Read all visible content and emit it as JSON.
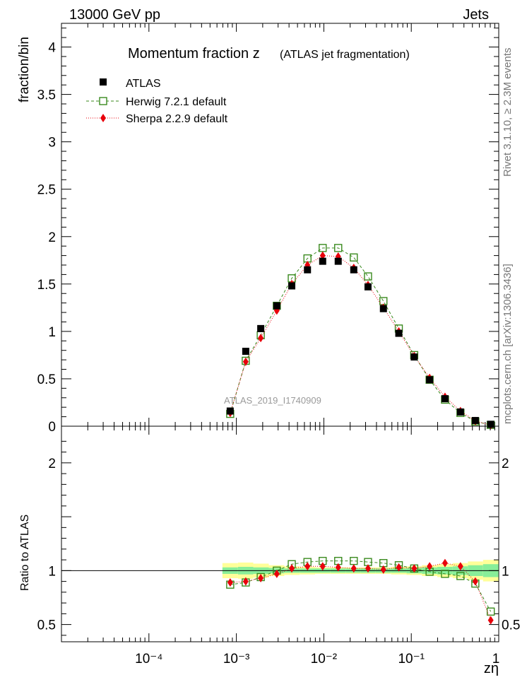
{
  "header": {
    "left": "13000 GeV pp",
    "right": "Jets"
  },
  "side": {
    "rivet": "Rivet 3.1.10, ≥ 2.3M events",
    "mcplots": "mcplots.cern.ch [arXiv:1306.3436]"
  },
  "chart_data": [
    {
      "type": "scatter",
      "title_main": "Momentum fraction z",
      "title_sub": "(ATLAS jet fragmentation)",
      "ylabel": "fraction/bin",
      "xscale": "log",
      "xlim": [
        1e-05,
        1
      ],
      "ylim": [
        0,
        4.25
      ],
      "yticks": [
        0,
        0.5,
        1,
        1.5,
        2,
        2.5,
        3,
        3.5,
        4
      ],
      "ytick_labels": [
        "0",
        "0.5",
        "1",
        "1.5",
        "2",
        "2.5",
        "3",
        "3.5",
        "4"
      ],
      "watermark": "ATLAS_2019_I1740909",
      "legend": [
        "ATLAS",
        "Herwig 7.2.1 default",
        "Sherpa 2.2.9 default"
      ],
      "x": [
        0.00085,
        0.00128,
        0.0019,
        0.0029,
        0.0043,
        0.0065,
        0.0097,
        0.0146,
        0.022,
        0.032,
        0.048,
        0.072,
        0.108,
        0.162,
        0.243,
        0.365,
        0.54,
        0.81
      ],
      "series": [
        {
          "name": "ATLAS",
          "color": "#000000",
          "marker": "square-filled",
          "values": [
            0.16,
            0.79,
            1.03,
            1.27,
            1.48,
            1.65,
            1.74,
            1.74,
            1.65,
            1.47,
            1.24,
            0.98,
            0.73,
            0.49,
            0.29,
            0.15,
            0.06,
            0.02
          ]
        },
        {
          "name": "Herwig 7.2.1 default",
          "color": "#3a8a1e",
          "marker": "square-open",
          "values": [
            0.13,
            0.69,
            0.96,
            1.27,
            1.56,
            1.77,
            1.88,
            1.88,
            1.78,
            1.58,
            1.32,
            1.03,
            0.75,
            0.49,
            0.28,
            0.14,
            0.05,
            0.014
          ]
        },
        {
          "name": "Sherpa 2.2.9 default",
          "color": "#e8000b",
          "marker": "diamond",
          "values": [
            0.14,
            0.68,
            0.93,
            1.22,
            1.5,
            1.7,
            1.8,
            1.79,
            1.67,
            1.49,
            1.25,
            1.0,
            0.74,
            0.51,
            0.31,
            0.16,
            0.055,
            0.012
          ]
        }
      ]
    },
    {
      "type": "scatter",
      "ylabel": "Ratio to ATLAS",
      "xlabel": "zη",
      "xscale": "log",
      "xlim": [
        1e-05,
        1
      ],
      "ylim": [
        0.34,
        2.34
      ],
      "yticks": [
        0.5,
        1,
        2
      ],
      "ytick_labels": [
        "0.5",
        "1",
        "2"
      ],
      "xtick_labels": [
        "10⁻⁴",
        "10⁻³",
        "10⁻²",
        "10⁻¹",
        "1"
      ],
      "xticks": [
        0.0001,
        0.001,
        0.01,
        0.1,
        1
      ],
      "band_inner": [
        0.03,
        0.035,
        0.03,
        0.025,
        0.02,
        0.02,
        0.02,
        0.02,
        0.02,
        0.02,
        0.02,
        0.02,
        0.025,
        0.03,
        0.035,
        0.04,
        0.05,
        0.06
      ],
      "band_outer": [
        0.07,
        0.075,
        0.065,
        0.05,
        0.04,
        0.035,
        0.03,
        0.03,
        0.03,
        0.03,
        0.03,
        0.035,
        0.04,
        0.05,
        0.06,
        0.07,
        0.085,
        0.1
      ],
      "series": [
        {
          "name": "Herwig 7.2.1 default",
          "color": "#3a8a1e",
          "marker": "square-open",
          "values": [
            0.87,
            0.89,
            0.94,
            1.0,
            1.06,
            1.08,
            1.09,
            1.09,
            1.09,
            1.08,
            1.07,
            1.05,
            1.02,
            0.99,
            0.97,
            0.95,
            0.88,
            0.62
          ]
        },
        {
          "name": "Sherpa 2.2.9 default",
          "color": "#e8000b",
          "marker": "diamond",
          "values": [
            0.89,
            0.9,
            0.93,
            0.97,
            1.02,
            1.04,
            1.04,
            1.03,
            1.02,
            1.02,
            1.01,
            1.03,
            1.02,
            1.04,
            1.07,
            1.04,
            0.9,
            0.54
          ]
        }
      ]
    }
  ]
}
